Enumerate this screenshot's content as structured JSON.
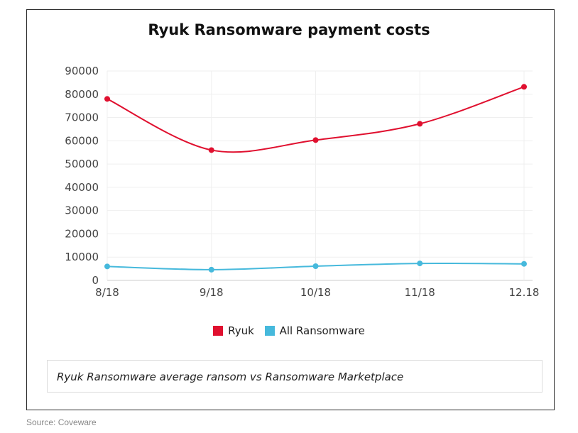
{
  "caption": "Ryuk Ransomware average ransom vs Ransomware Marketplace",
  "source": "Source: Coveware",
  "colors": {
    "ryuk": "#e0102f",
    "all": "#46b9dc",
    "grid": "#efefef",
    "axis": "#cccccc"
  },
  "chart_data": {
    "type": "line",
    "title": "Ryuk Ransomware payment costs",
    "categories": [
      "8/18",
      "9/18",
      "10/18",
      "11/18",
      "12.18"
    ],
    "ylim": [
      0,
      90000
    ],
    "yticks": [
      0,
      10000,
      20000,
      30000,
      40000,
      50000,
      60000,
      70000,
      80000,
      90000
    ],
    "grid": true,
    "legend_position": "bottom",
    "series": [
      {
        "name": "Ryuk",
        "color": "#e0102f",
        "values": [
          78000,
          56000,
          60300,
          67300,
          83200
        ]
      },
      {
        "name": "All Ransomware",
        "color": "#46b9dc",
        "values": [
          6000,
          4600,
          6100,
          7300,
          7100
        ]
      }
    ]
  }
}
